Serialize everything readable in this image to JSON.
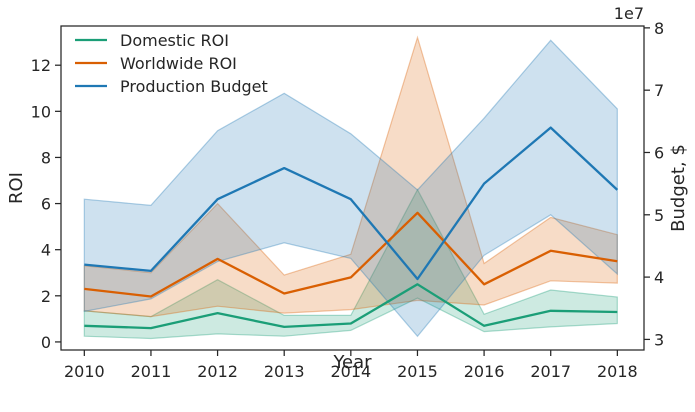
{
  "chart_data": {
    "type": "line",
    "x": [
      2010,
      2011,
      2012,
      2013,
      2014,
      2015,
      2016,
      2017,
      2018
    ],
    "xlabel": "Year",
    "ylabel": "ROI",
    "y2label": "Budget, $",
    "y2_offset_label": "1e7",
    "xlim": [
      2009.65,
      2018.4
    ],
    "ylim": [
      -0.35,
      13.7
    ],
    "y2lim": [
      2.83,
      8.03
    ],
    "xticks": [
      "2010",
      "2011",
      "2012",
      "2013",
      "2014",
      "2015",
      "2016",
      "2017",
      "2018"
    ],
    "yticks": [
      "0",
      "2",
      "4",
      "6",
      "8",
      "10",
      "12"
    ],
    "y2ticks": [
      "3",
      "4",
      "5",
      "6",
      "7",
      "8"
    ],
    "legend": "upper-left",
    "series": [
      {
        "name": "Domestic ROI",
        "axis": "left",
        "color": "#1b9e77",
        "values": [
          0.7,
          0.6,
          1.25,
          0.65,
          0.8,
          2.5,
          0.7,
          1.35,
          1.3
        ],
        "ci_low": [
          0.25,
          0.15,
          0.35,
          0.25,
          0.5,
          1.9,
          0.45,
          0.65,
          0.8
        ],
        "ci_high": [
          1.35,
          1.1,
          2.7,
          1.15,
          1.15,
          6.6,
          1.2,
          2.25,
          1.95
        ]
      },
      {
        "name": "Worldwide ROI",
        "axis": "left",
        "color": "#d95f02",
        "values": [
          2.3,
          1.97,
          3.6,
          2.1,
          2.8,
          5.6,
          2.5,
          3.95,
          3.5
        ],
        "ci_low": [
          1.35,
          1.1,
          1.55,
          1.25,
          1.4,
          1.8,
          1.6,
          2.65,
          2.55
        ],
        "ci_high": [
          3.3,
          3.0,
          6.0,
          2.9,
          3.8,
          13.2,
          3.4,
          5.4,
          4.65
        ]
      },
      {
        "name": "Production Budget",
        "axis": "right",
        "color": "#1f78b4",
        "values": [
          4.2,
          4.1,
          5.25,
          5.75,
          5.25,
          3.97,
          5.5,
          6.4,
          5.4
        ],
        "ci_low": [
          3.45,
          3.65,
          4.25,
          4.55,
          4.3,
          3.05,
          4.35,
          5.0,
          4.05
        ],
        "ci_high": [
          5.25,
          5.15,
          6.35,
          6.95,
          6.3,
          5.4,
          6.55,
          7.8,
          6.7
        ]
      }
    ]
  }
}
